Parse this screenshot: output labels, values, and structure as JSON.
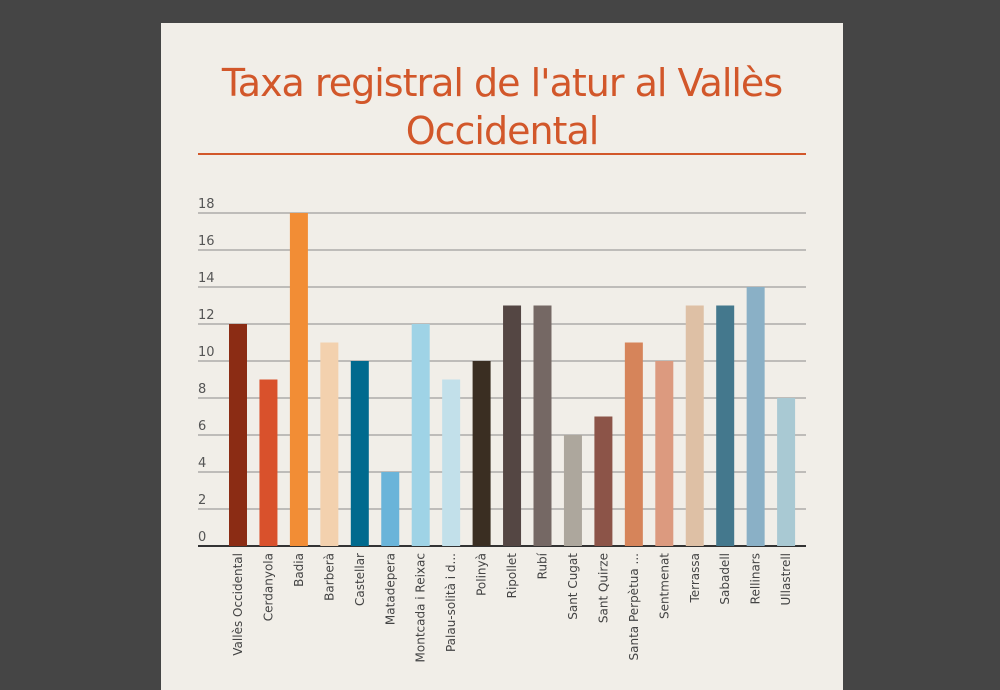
{
  "chart_data": {
    "type": "bar",
    "title": "Taxa registral de l'atur al Vallès Occidental",
    "xlabel": "",
    "ylabel": "",
    "ylim": [
      0,
      18
    ],
    "yticks": [
      0,
      2,
      4,
      6,
      8,
      10,
      12,
      14,
      16,
      18
    ],
    "grid": true,
    "legend": "none",
    "categories": [
      "Vallès Occidental",
      "Cerdanyola",
      "Badia",
      "Barberà",
      "Castellar",
      "Matadepera",
      "Montcada i Reixac",
      "Palau-solità i d...",
      "Polinyà",
      "Ripollet",
      "Rubí",
      "Sant Cugat",
      "Sant Quirze",
      "Santa Perpètua ...",
      "Sentmenat",
      "Terrassa",
      "Sabadell",
      "Rellinars",
      "Ullastrell"
    ],
    "values": [
      12,
      9,
      18,
      11,
      10,
      4,
      12,
      9,
      10,
      13,
      13,
      6,
      7,
      11,
      10,
      13,
      13,
      14,
      8
    ],
    "colors": [
      "#8b2c14",
      "#d9512c",
      "#f28d35",
      "#f3d1ae",
      "#006a8e",
      "#6ab4d9",
      "#9fd3e6",
      "#c2e0ea",
      "#3a2e22",
      "#544643",
      "#756864",
      "#ada79d",
      "#8c5448",
      "#d6845a",
      "#dc9a7f",
      "#dec0a5",
      "#44788d",
      "#8ab0c6",
      "#a9c9d3"
    ]
  }
}
